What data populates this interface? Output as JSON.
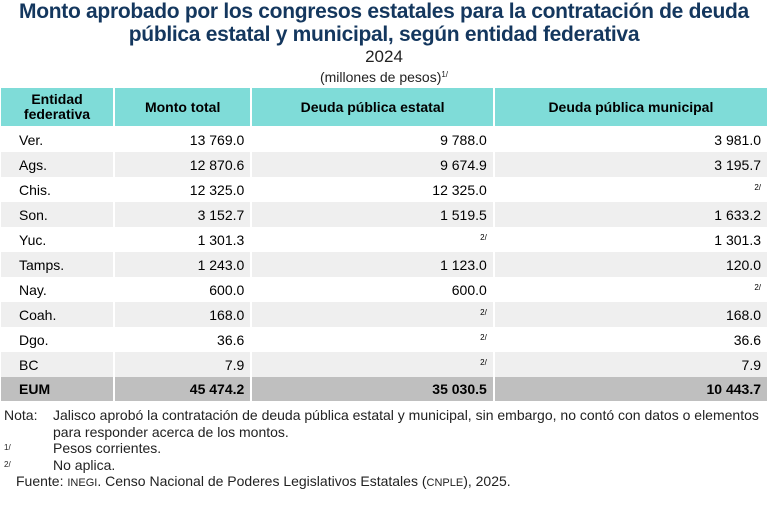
{
  "title": "Monto aprobado por los congresos estatales para la contratación de deuda pública estatal y municipal, según entidad federativa",
  "year": "2024",
  "units": "(millones de pesos)",
  "units_note": "1/",
  "colors": {
    "title": "#14375e",
    "header": "#7fdcd8",
    "total_row": "#bfbfbf",
    "alt_row": "#efefef"
  },
  "table": {
    "headers": [
      "Entidad federativa",
      "Monto total",
      "Deuda pública estatal",
      "Deuda pública municipal"
    ],
    "rows": [
      [
        "Ver.",
        "13 769.0",
        "9 788.0",
        "3 981.0"
      ],
      [
        "Ags.",
        "12 870.6",
        "9 674.9",
        "3 195.7"
      ],
      [
        "Chis.",
        "12 325.0",
        "12 325.0",
        "2/"
      ],
      [
        "Son.",
        "3 152.7",
        "1 519.5",
        "1 633.2"
      ],
      [
        "Yuc.",
        "1 301.3",
        "2/",
        "1 301.3"
      ],
      [
        "Tamps.",
        "1 243.0",
        "1 123.0",
        "120.0"
      ],
      [
        "Nay.",
        "600.0",
        "600.0",
        "2/"
      ],
      [
        "Coah.",
        "168.0",
        "2/",
        "168.0"
      ],
      [
        "Dgo.",
        "36.6",
        "2/",
        "36.6"
      ],
      [
        "BC",
        "7.9",
        "2/",
        "7.9"
      ]
    ],
    "total": [
      "EUM",
      "45 474.2",
      "35 030.5",
      "10 443.7"
    ]
  },
  "notes": {
    "nota_label": "Nota:",
    "nota_text": "Jalisco aprobó la contratación de deuda pública estatal y municipal, sin embargo, no contó con datos o elementos para responder acerca de los montos.",
    "n1_key": "1/",
    "n1_text": "Pesos corrientes.",
    "n2_key": "2/",
    "n2_text": "No aplica.",
    "source_label": "Fuente:",
    "source_org": "INEGI",
    "source_text1": ". Censo Nacional de Poderes Legislativos Estatales (",
    "source_abbr": "CNPLE",
    "source_text2": "), 2025."
  }
}
